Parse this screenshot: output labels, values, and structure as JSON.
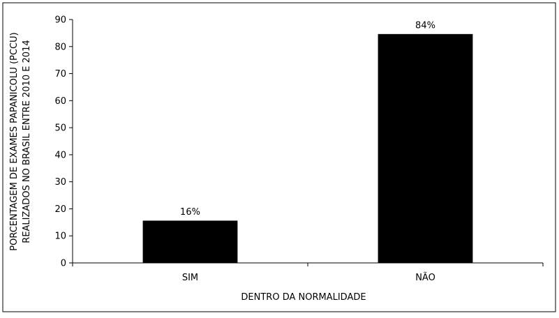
{
  "chart_data": {
    "type": "bar",
    "categories": [
      "SIM",
      "NÃO"
    ],
    "values": [
      15.5,
      84.5
    ],
    "data_labels": [
      "16%",
      "84%"
    ],
    "title": "",
    "xlabel": "DENTRO DA NORMALIDADE",
    "ylabel_lines": [
      "PORCENTAGEM DE EXAMES PAPANICOLU (PCCU)",
      "REALIZADOS NO BRASIL ENTRE 2010 E 2014"
    ],
    "ylim": [
      0,
      90
    ],
    "yticks": [
      0,
      10,
      20,
      30,
      40,
      50,
      60,
      70,
      80,
      90
    ],
    "grid": false,
    "legend": "none",
    "bar_color": "#000000"
  }
}
